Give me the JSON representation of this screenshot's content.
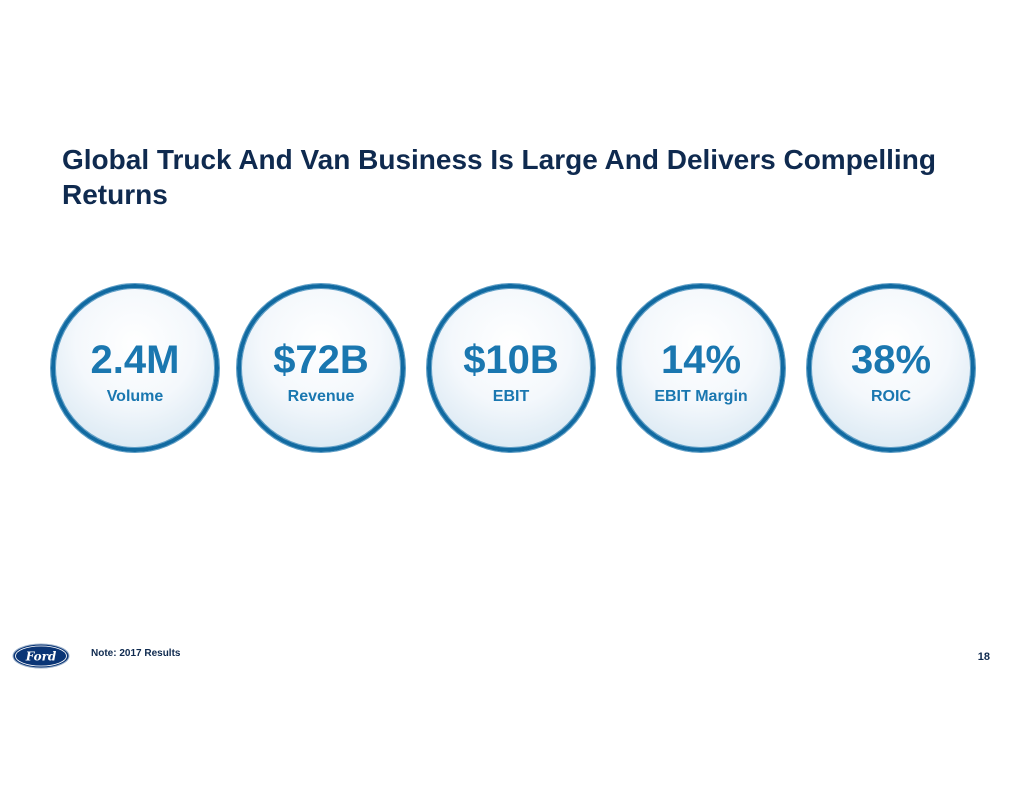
{
  "slide": {
    "title": "Global Truck And Van Business Is Large And Delivers Compelling Returns"
  },
  "metrics": [
    {
      "value": "2.4M",
      "label": "Volume"
    },
    {
      "value": "$72B",
      "label": "Revenue"
    },
    {
      "value": "$10B",
      "label": "EBIT"
    },
    {
      "value": "14%",
      "label": "EBIT Margin"
    },
    {
      "value": "38%",
      "label": "ROIC"
    }
  ],
  "footer": {
    "logo_text": "Ford",
    "note": "Note:  2017 Results",
    "page_number": "18"
  },
  "colors": {
    "title": "#0f2a4f",
    "accent": "#1a77b0",
    "circle_border": "#116aa1",
    "logo_blue": "#0a3576"
  },
  "icons": {
    "logo": "ford-oval-logo"
  }
}
